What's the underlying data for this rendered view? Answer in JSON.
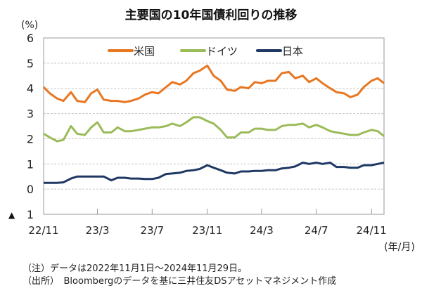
{
  "chart_data": {
    "type": "line",
    "title": "主要国の10年国債利回りの推移",
    "ylabel": "(%)",
    "xlabel": "(年/月)",
    "ylim": [
      -1,
      6
    ],
    "yticks": [
      6,
      5,
      4,
      3,
      2,
      1,
      0,
      -1
    ],
    "ytick_labels": [
      "6",
      "5",
      "4",
      "3",
      "2",
      "1",
      "0",
      "1"
    ],
    "negative_marker": "▲",
    "xticks": [
      "22/11",
      "23/3",
      "23/7",
      "23/11",
      "24/3",
      "24/7",
      "24/11"
    ],
    "xtick_dates": [
      "2022-11-01",
      "2023-03-01",
      "2023-07-01",
      "2023-11-01",
      "2024-03-01",
      "2024-07-01",
      "2024-11-01"
    ],
    "xlim": [
      "2022-11-01",
      "2024-11-29"
    ],
    "grid": true,
    "legend": "top",
    "x": [
      "2022-11-01",
      "2022-11-15",
      "2022-12-01",
      "2022-12-15",
      "2023-01-01",
      "2023-01-15",
      "2023-02-01",
      "2023-02-15",
      "2023-03-01",
      "2023-03-15",
      "2023-04-01",
      "2023-04-15",
      "2023-05-01",
      "2023-05-15",
      "2023-06-01",
      "2023-06-15",
      "2023-07-01",
      "2023-07-15",
      "2023-08-01",
      "2023-08-15",
      "2023-09-01",
      "2023-09-15",
      "2023-10-01",
      "2023-10-15",
      "2023-11-01",
      "2023-11-15",
      "2023-12-01",
      "2023-12-15",
      "2024-01-01",
      "2024-01-15",
      "2024-02-01",
      "2024-02-15",
      "2024-03-01",
      "2024-03-15",
      "2024-04-01",
      "2024-04-15",
      "2024-05-01",
      "2024-05-15",
      "2024-06-01",
      "2024-06-15",
      "2024-07-01",
      "2024-07-15",
      "2024-08-01",
      "2024-08-15",
      "2024-09-01",
      "2024-09-15",
      "2024-10-01",
      "2024-10-15",
      "2024-11-01",
      "2024-11-15",
      "2024-11-29"
    ],
    "series": [
      {
        "name": "米国",
        "color": "#e87722",
        "values": [
          4.05,
          3.8,
          3.6,
          3.5,
          3.85,
          3.5,
          3.45,
          3.8,
          3.95,
          3.55,
          3.5,
          3.5,
          3.45,
          3.5,
          3.6,
          3.75,
          3.85,
          3.8,
          4.05,
          4.25,
          4.15,
          4.3,
          4.6,
          4.7,
          4.9,
          4.5,
          4.3,
          3.95,
          3.9,
          4.05,
          4.0,
          4.25,
          4.2,
          4.3,
          4.3,
          4.6,
          4.65,
          4.4,
          4.5,
          4.25,
          4.4,
          4.2,
          4.0,
          3.85,
          3.8,
          3.65,
          3.75,
          4.05,
          4.3,
          4.4,
          4.2
        ]
      },
      {
        "name": "ドイツ",
        "color": "#9bbb59",
        "values": [
          2.2,
          2.05,
          1.9,
          1.95,
          2.5,
          2.2,
          2.15,
          2.45,
          2.65,
          2.25,
          2.25,
          2.45,
          2.3,
          2.3,
          2.35,
          2.4,
          2.45,
          2.45,
          2.5,
          2.6,
          2.5,
          2.65,
          2.85,
          2.85,
          2.7,
          2.6,
          2.35,
          2.05,
          2.05,
          2.25,
          2.25,
          2.4,
          2.4,
          2.35,
          2.35,
          2.5,
          2.55,
          2.55,
          2.6,
          2.45,
          2.55,
          2.45,
          2.3,
          2.25,
          2.2,
          2.15,
          2.15,
          2.25,
          2.35,
          2.3,
          2.1
        ]
      },
      {
        "name": "日本",
        "color": "#1f3864",
        "values": [
          0.25,
          0.25,
          0.25,
          0.27,
          0.42,
          0.5,
          0.5,
          0.5,
          0.5,
          0.5,
          0.35,
          0.45,
          0.45,
          0.42,
          0.42,
          0.4,
          0.4,
          0.45,
          0.6,
          0.62,
          0.65,
          0.72,
          0.75,
          0.8,
          0.95,
          0.85,
          0.75,
          0.65,
          0.62,
          0.7,
          0.7,
          0.72,
          0.72,
          0.75,
          0.75,
          0.82,
          0.85,
          0.9,
          1.05,
          1.0,
          1.05,
          1.0,
          1.05,
          0.88,
          0.88,
          0.85,
          0.85,
          0.95,
          0.95,
          1.0,
          1.05
        ]
      }
    ]
  },
  "notes": {
    "note": "（注）データは2022年11月1日～2024年11月29日。",
    "source": "（出所）　Bloombergのデータを基に三井住友DSアセットマネジメント作成"
  }
}
